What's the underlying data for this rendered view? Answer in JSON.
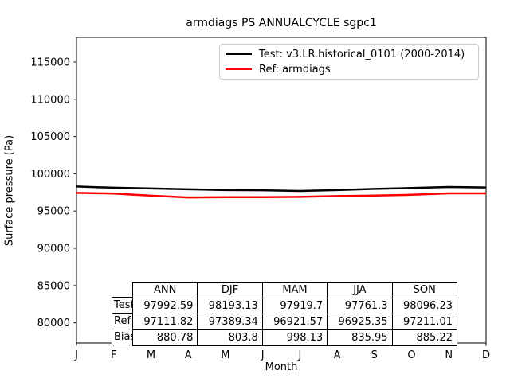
{
  "title": "armdiags PS ANNUALCYCLE sgpc1",
  "chart_data": {
    "type": "line",
    "title": "armdiags PS ANNUALCYCLE sgpc1",
    "xlabel": "Month",
    "ylabel": "Surface pressure (Pa)",
    "x_tick_labels": [
      "J",
      "F",
      "M",
      "A",
      "M",
      "J",
      "J",
      "A",
      "S",
      "O",
      "N",
      "D"
    ],
    "y_ticks": [
      80000,
      85000,
      90000,
      95000,
      100000,
      105000,
      110000,
      115000
    ],
    "ylim": [
      77290,
      118310
    ],
    "grid": false,
    "legend_position": "upper right",
    "series": [
      {
        "name": "Test: v3.LR.historical_0101 (2000-2014)",
        "color": "#000000",
        "values": [
          98290,
          98130,
          98030,
          97920,
          97810,
          97780,
          97690,
          97815,
          97975,
          98090,
          98225,
          98160
        ]
      },
      {
        "name": "Ref: armdiags",
        "color": "#ff0000",
        "values": [
          97440,
          97350,
          97070,
          96830,
          96865,
          96860,
          96905,
          97011,
          97080,
          97180,
          97373,
          97378
        ]
      }
    ],
    "annotations": {
      "seasonal_means_table": "see table key"
    }
  },
  "legend": {
    "entries": [
      {
        "label": "Test: v3.LR.historical_0101 (2000-2014)",
        "color": "#000000"
      },
      {
        "label": "Ref: armdiags",
        "color": "#ff0000"
      }
    ]
  },
  "table": {
    "col_headers": [
      "ANN",
      "DJF",
      "MAM",
      "JJA",
      "SON"
    ],
    "rows": [
      {
        "label": "Test",
        "values": [
          "97992.59",
          "98193.13",
          "97919.7",
          "97761.3",
          "98096.23"
        ]
      },
      {
        "label": "Ref",
        "values": [
          "97111.82",
          "97389.34",
          "96921.57",
          "96925.35",
          "97211.01"
        ]
      },
      {
        "label": "Bias",
        "values": [
          "880.78",
          "803.8",
          "998.13",
          "835.95",
          "885.22"
        ]
      }
    ]
  }
}
